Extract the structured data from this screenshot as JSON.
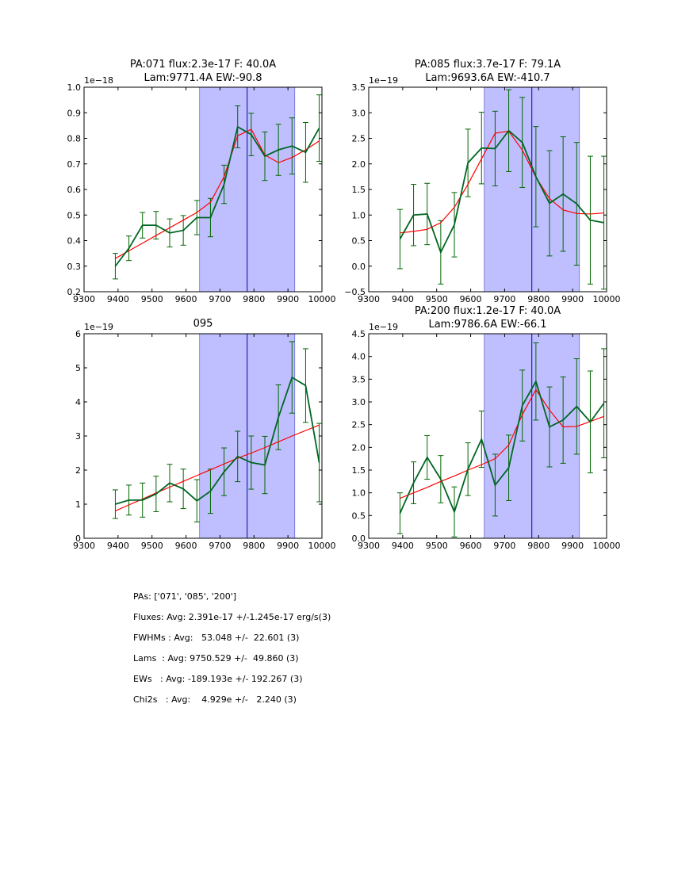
{
  "figure": {
    "highlight_color": "#bfbfff",
    "model_color": "#ff0000",
    "data_color": "#006622",
    "errbar_color": "#006600",
    "marker_color": "#0000aa"
  },
  "chart_data": [
    {
      "type": "line",
      "title": [
        "PA:071 flux:2.3e-17 F: 40.0A",
        "Lam:9771.4A EW:-90.8"
      ],
      "xlim": [
        9300,
        10000
      ],
      "ylim": [
        0.2,
        1.0
      ],
      "offset_label": "1e−18",
      "xticks": [
        9300,
        9400,
        9500,
        9600,
        9700,
        9800,
        9900,
        10000
      ],
      "yticks": [
        0.2,
        0.3,
        0.4,
        0.5,
        0.6,
        0.7,
        0.8,
        0.9,
        1.0
      ],
      "ytick_labels": [
        "0.2",
        "0.3",
        "0.4",
        "0.5",
        "0.6",
        "0.7",
        "0.8",
        "0.9",
        "1.0"
      ],
      "highlight": [
        9640,
        9920
      ],
      "line_marker": 9780,
      "x": [
        9392,
        9432,
        9472,
        9512,
        9552,
        9592,
        9632,
        9672,
        9712,
        9752,
        9792,
        9832,
        9872,
        9912,
        9952,
        9992
      ],
      "series": [
        {
          "name": "data",
          "values": [
            0.3,
            0.37,
            0.46,
            0.46,
            0.43,
            0.44,
            0.49,
            0.49,
            0.62,
            0.845,
            0.815,
            0.73,
            0.755,
            0.77,
            0.745,
            0.84
          ],
          "errors": [
            0.05,
            0.048,
            0.05,
            0.054,
            0.055,
            0.058,
            0.067,
            0.075,
            0.075,
            0.082,
            0.083,
            0.095,
            0.1,
            0.11,
            0.117,
            0.13
          ]
        },
        {
          "name": "model",
          "values": [
            0.33,
            0.36,
            0.39,
            0.42,
            0.45,
            0.48,
            0.51,
            0.55,
            0.65,
            0.81,
            0.835,
            0.735,
            0.705,
            0.725,
            0.755,
            0.79
          ]
        }
      ]
    },
    {
      "type": "line",
      "title": [
        "PA:085 flux:3.7e-17 F: 79.1A",
        "Lam:9693.6A EW:-410.7"
      ],
      "xlim": [
        9300,
        10000
      ],
      "ylim": [
        -0.5,
        3.5
      ],
      "offset_label": "1e−19",
      "xticks": [
        9300,
        9400,
        9500,
        9600,
        9700,
        9800,
        9900,
        10000
      ],
      "yticks": [
        -0.5,
        0.0,
        0.5,
        1.0,
        1.5,
        2.0,
        2.5,
        3.0,
        3.5
      ],
      "ytick_labels": [
        "−0.5",
        "0.0",
        "0.5",
        "1.0",
        "1.5",
        "2.0",
        "2.5",
        "3.0",
        "3.5"
      ],
      "highlight": [
        9640,
        9920
      ],
      "line_marker": 9780,
      "x": [
        9392,
        9432,
        9472,
        9512,
        9552,
        9592,
        9632,
        9672,
        9712,
        9752,
        9792,
        9832,
        9872,
        9912,
        9952,
        9992
      ],
      "series": [
        {
          "name": "data",
          "values": [
            0.53,
            1.0,
            1.02,
            0.27,
            0.81,
            2.02,
            2.31,
            2.3,
            2.65,
            2.42,
            1.75,
            1.23,
            1.41,
            1.22,
            0.9,
            0.85
          ],
          "errors": [
            0.58,
            0.6,
            0.6,
            0.62,
            0.63,
            0.66,
            0.7,
            0.73,
            0.8,
            0.88,
            0.98,
            1.03,
            1.12,
            1.2,
            1.25,
            1.3
          ]
        },
        {
          "name": "model",
          "values": [
            0.65,
            0.68,
            0.72,
            0.85,
            1.15,
            1.6,
            2.1,
            2.6,
            2.64,
            2.27,
            1.74,
            1.32,
            1.1,
            1.03,
            1.02,
            1.04
          ]
        }
      ]
    },
    {
      "type": "line",
      "title": [
        "095"
      ],
      "xlim": [
        9300,
        10000
      ],
      "ylim": [
        0,
        6
      ],
      "offset_label": "1e−19",
      "xticks": [
        9300,
        9400,
        9500,
        9600,
        9700,
        9800,
        9900,
        10000
      ],
      "yticks": [
        0,
        1,
        2,
        3,
        4,
        5,
        6
      ],
      "ytick_labels": [
        "0",
        "1",
        "2",
        "3",
        "4",
        "5",
        "6"
      ],
      "highlight": [
        9640,
        9920
      ],
      "line_marker": 9780,
      "x": [
        9392,
        9432,
        9472,
        9512,
        9552,
        9592,
        9632,
        9672,
        9712,
        9752,
        9792,
        9832,
        9872,
        9912,
        9952,
        9992
      ],
      "series": [
        {
          "name": "data",
          "values": [
            1.0,
            1.12,
            1.12,
            1.3,
            1.62,
            1.45,
            1.1,
            1.38,
            1.95,
            2.4,
            2.22,
            2.15,
            3.55,
            4.72,
            4.48,
            2.22
          ],
          "errors": [
            0.42,
            0.44,
            0.5,
            0.52,
            0.55,
            0.58,
            0.62,
            0.65,
            0.7,
            0.74,
            0.78,
            0.84,
            0.95,
            1.05,
            1.08,
            1.15
          ]
        },
        {
          "name": "model",
          "values": [
            0.8,
            0.98,
            1.15,
            1.33,
            1.5,
            1.67,
            1.84,
            2.01,
            2.18,
            2.35,
            2.5,
            2.66,
            2.83,
            3.0,
            3.16,
            3.32
          ]
        }
      ]
    },
    {
      "type": "line",
      "title": [
        "PA:200 flux:1.2e-17 F: 40.0A",
        "Lam:9786.6A EW:-66.1"
      ],
      "xlim": [
        9300,
        10000
      ],
      "ylim": [
        0,
        4.5
      ],
      "offset_label": "1e−19",
      "xticks": [
        9300,
        9400,
        9500,
        9600,
        9700,
        9800,
        9900,
        10000
      ],
      "yticks": [
        0,
        0.5,
        1.0,
        1.5,
        2.0,
        2.5,
        3.0,
        3.5,
        4.0,
        4.5
      ],
      "ytick_labels": [
        "0.0",
        "0.5",
        "1.0",
        "1.5",
        "2.0",
        "2.5",
        "3.0",
        "3.5",
        "4.0",
        "4.5"
      ],
      "highlight": [
        9640,
        9920
      ],
      "line_marker": 9780,
      "x": [
        9392,
        9432,
        9472,
        9512,
        9552,
        9592,
        9632,
        9672,
        9712,
        9752,
        9792,
        9832,
        9872,
        9912,
        9952,
        9992
      ],
      "series": [
        {
          "name": "data",
          "values": [
            0.55,
            1.22,
            1.78,
            1.3,
            0.58,
            1.52,
            2.18,
            1.17,
            1.55,
            2.92,
            3.45,
            2.45,
            2.6,
            2.9,
            2.56,
            2.97
          ],
          "errors": [
            0.45,
            0.46,
            0.48,
            0.52,
            0.55,
            0.58,
            0.62,
            0.68,
            0.72,
            0.78,
            0.85,
            0.88,
            0.95,
            1.05,
            1.12,
            1.2
          ]
        },
        {
          "name": "model",
          "values": [
            0.88,
            1.0,
            1.12,
            1.25,
            1.37,
            1.5,
            1.62,
            1.75,
            2.05,
            2.72,
            3.27,
            2.82,
            2.45,
            2.46,
            2.57,
            2.68
          ]
        }
      ]
    }
  ],
  "summary": {
    "pas": "PAs: ['071', '085', '200']",
    "fluxes": "Fluxes: Avg: 2.391e-17 +/-1.245e-17 erg/s(3)",
    "fwhms": "FWHMs : Avg:   53.048 +/-  22.601 (3)",
    "lams": "Lams  : Avg: 9750.529 +/-  49.860 (3)",
    "ews": "EWs   : Avg: -189.193e +/- 192.267 (3)",
    "chi2s": "Chi2s   : Avg:    4.929e +/-   2.240 (3)"
  }
}
